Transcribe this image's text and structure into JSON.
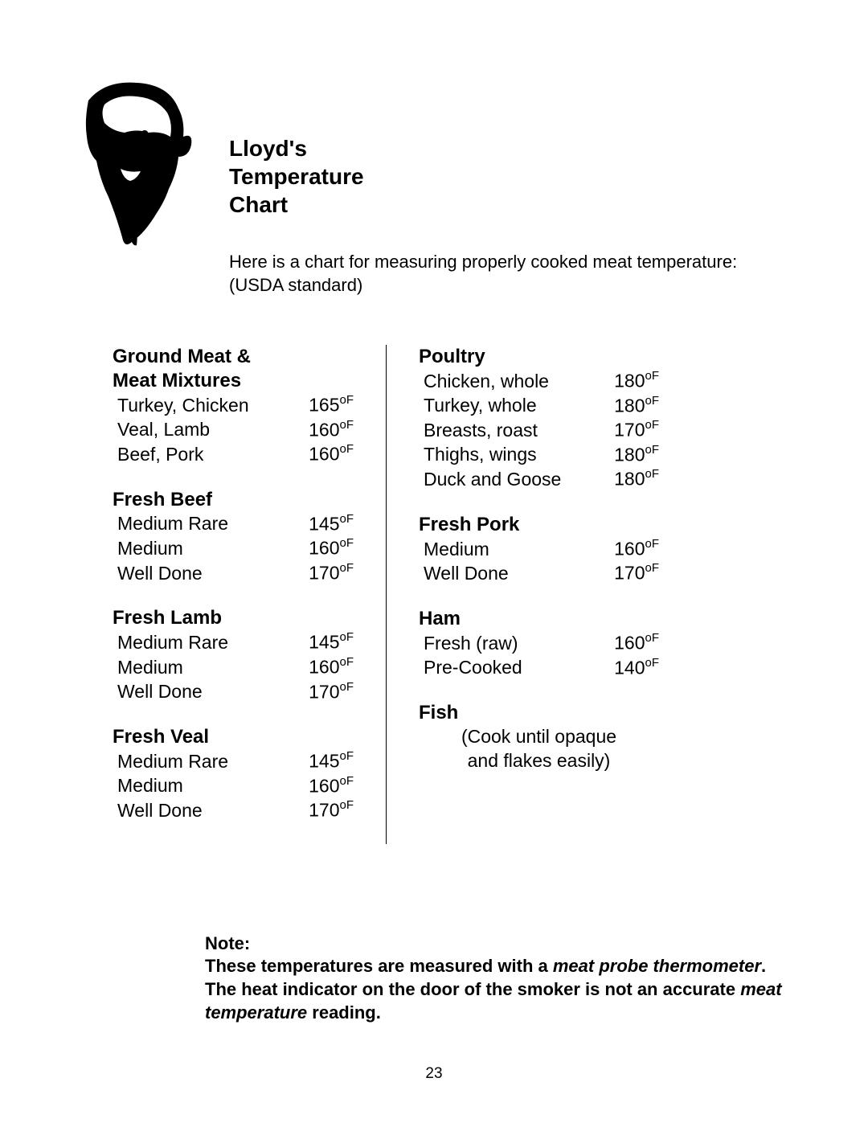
{
  "title_line1": "Lloyd's",
  "title_line2": "Temperature",
  "title_line3": "Chart",
  "intro_line1": "Here is a chart for measuring properly cooked meat temperature:",
  "intro_line2": "(USDA standard)",
  "left": [
    {
      "heading": "Ground Meat & Meat Mixtures",
      "rows": [
        {
          "label": "Turkey, Chicken",
          "temp": "165"
        },
        {
          "label": "Veal, Lamb",
          "temp": "160"
        },
        {
          "label": "Beef, Pork",
          "temp": "160"
        }
      ]
    },
    {
      "heading": "Fresh Beef",
      "rows": [
        {
          "label": "Medium Rare",
          "temp": "145"
        },
        {
          "label": "Medium",
          "temp": "160"
        },
        {
          "label": "Well Done",
          "temp": "170"
        }
      ]
    },
    {
      "heading": "Fresh Lamb",
      "rows": [
        {
          "label": "Medium Rare",
          "temp": "145"
        },
        {
          "label": "Medium",
          "temp": "160"
        },
        {
          "label": "Well Done",
          "temp": "170"
        }
      ]
    },
    {
      "heading": "Fresh Veal",
      "rows": [
        {
          "label": "Medium Rare",
          "temp": "145"
        },
        {
          "label": "Medium",
          "temp": "160"
        },
        {
          "label": "Well Done",
          "temp": "170"
        }
      ]
    }
  ],
  "right": [
    {
      "heading": "Poultry",
      "rows": [
        {
          "label": "Chicken, whole",
          "temp": "180"
        },
        {
          "label": "Turkey, whole",
          "temp": "180"
        },
        {
          "label": "Breasts, roast",
          "temp": "170"
        },
        {
          "label": "Thighs, wings",
          "temp": "180"
        },
        {
          "label": "Duck and Goose",
          "temp": "180"
        }
      ]
    },
    {
      "heading": "Fresh Pork",
      "rows": [
        {
          "label": "Medium",
          "temp": "160"
        },
        {
          "label": "Well Done",
          "temp": "170"
        }
      ]
    },
    {
      "heading": "Ham",
      "rows": [
        {
          "label": "Fresh (raw)",
          "temp": "160"
        },
        {
          "label": "Pre-Cooked",
          "temp": "140"
        }
      ]
    },
    {
      "heading": "Fish",
      "note_line1": "(Cook until opaque",
      "note_line2": "and flakes easily)"
    }
  ],
  "note_heading": "Note:",
  "note_text_1": "These temperatures are measured with a ",
  "note_italic_1": "meat probe thermometer",
  "note_text_2": ". The heat indicator on the door of the smoker is not an accurate ",
  "note_italic_2": "meat temperature",
  "note_text_3": " reading.",
  "page_number": "23",
  "degree_unit": "oF"
}
